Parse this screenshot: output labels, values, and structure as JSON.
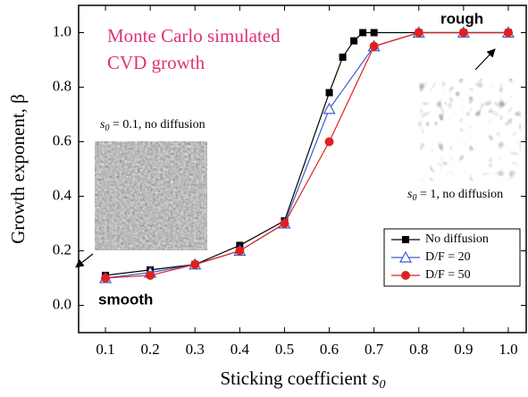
{
  "chart_data": {
    "type": "line",
    "x_label": [
      "Sticking coefficient ",
      "s",
      "0"
    ],
    "y_label": "Growth exponent, β",
    "xlim": [
      0.04,
      1.04
    ],
    "ylim": [
      -0.1,
      1.1
    ],
    "xticks": [
      0.1,
      0.2,
      0.3,
      0.4,
      0.5,
      0.6,
      0.7,
      0.8,
      0.9,
      {
        "value": 1,
        "label": "1.0"
      }
    ],
    "yticks": [
      {
        "value": 0,
        "label": "0.0"
      },
      0.2,
      0.4,
      0.6,
      0.8,
      {
        "value": 1,
        "label": "1.0"
      }
    ],
    "legend": "lower right",
    "series": [
      {
        "name": "No diffusion",
        "color": "#000000",
        "marker": "square",
        "x": [
          0.1,
          0.2,
          0.3,
          0.4,
          0.5,
          0.6,
          0.63,
          0.655,
          0.675,
          0.7,
          0.8,
          0.9,
          1.0
        ],
        "values": [
          0.11,
          0.13,
          0.15,
          0.22,
          0.31,
          0.78,
          0.91,
          0.97,
          1.0,
          1.0,
          1.0,
          1.0,
          1.0
        ]
      },
      {
        "name": "D/F = 20",
        "color": "#3a5fcd",
        "marker": "triangle",
        "x": [
          0.1,
          0.2,
          0.3,
          0.4,
          0.5,
          0.6,
          0.7,
          0.8,
          0.9,
          1.0
        ],
        "values": [
          0.1,
          0.12,
          0.15,
          0.2,
          0.3,
          0.72,
          0.95,
          1.0,
          1.0,
          1.0
        ]
      },
      {
        "name": "D/F = 50",
        "color": "#e02020",
        "marker": "circle",
        "x": [
          0.1,
          0.2,
          0.3,
          0.4,
          0.5,
          0.6,
          0.7,
          0.8,
          0.9,
          1.0
        ],
        "values": [
          0.1,
          0.11,
          0.15,
          0.2,
          0.3,
          0.6,
          0.95,
          1.0,
          1.0,
          1.0
        ]
      }
    ],
    "annotations": {
      "title_lines": [
        "Monte Carlo simulated",
        "CVD growth"
      ],
      "left_caption": [
        "s",
        "0",
        " = 0.1, no diffusion"
      ],
      "right_caption": [
        "s",
        "0",
        " = 1, no diffusion"
      ],
      "rough": "rough",
      "smooth": "smooth"
    }
  }
}
